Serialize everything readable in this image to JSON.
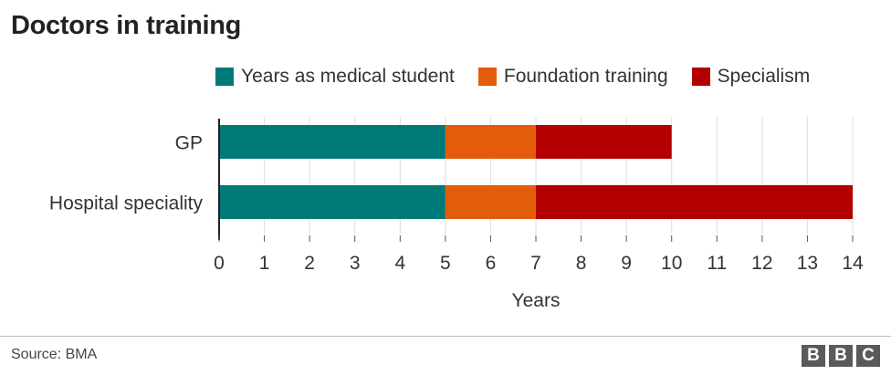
{
  "chart_data": {
    "type": "bar",
    "orientation": "horizontal",
    "stacked": true,
    "title": "Doctors in training",
    "xlabel": "Years",
    "xlim": [
      0,
      14
    ],
    "xticks": [
      "0",
      "1",
      "2",
      "3",
      "4",
      "5",
      "6",
      "7",
      "8",
      "9",
      "10",
      "11",
      "12",
      "13",
      "14"
    ],
    "categories": [
      "GP",
      "Hospital speciality"
    ],
    "series": [
      {
        "name": "Years as medical student",
        "color": "#007a78",
        "values": [
          5,
          5
        ]
      },
      {
        "name": "Foundation training",
        "color": "#e35c0b",
        "values": [
          2,
          2
        ]
      },
      {
        "name": "Specialism",
        "color": "#b20000",
        "values": [
          3,
          7
        ]
      }
    ],
    "grid": "vertical",
    "legend_position": "top"
  },
  "footer": {
    "source": "Source: BMA",
    "logo_letters": [
      "B",
      "B",
      "C"
    ]
  }
}
